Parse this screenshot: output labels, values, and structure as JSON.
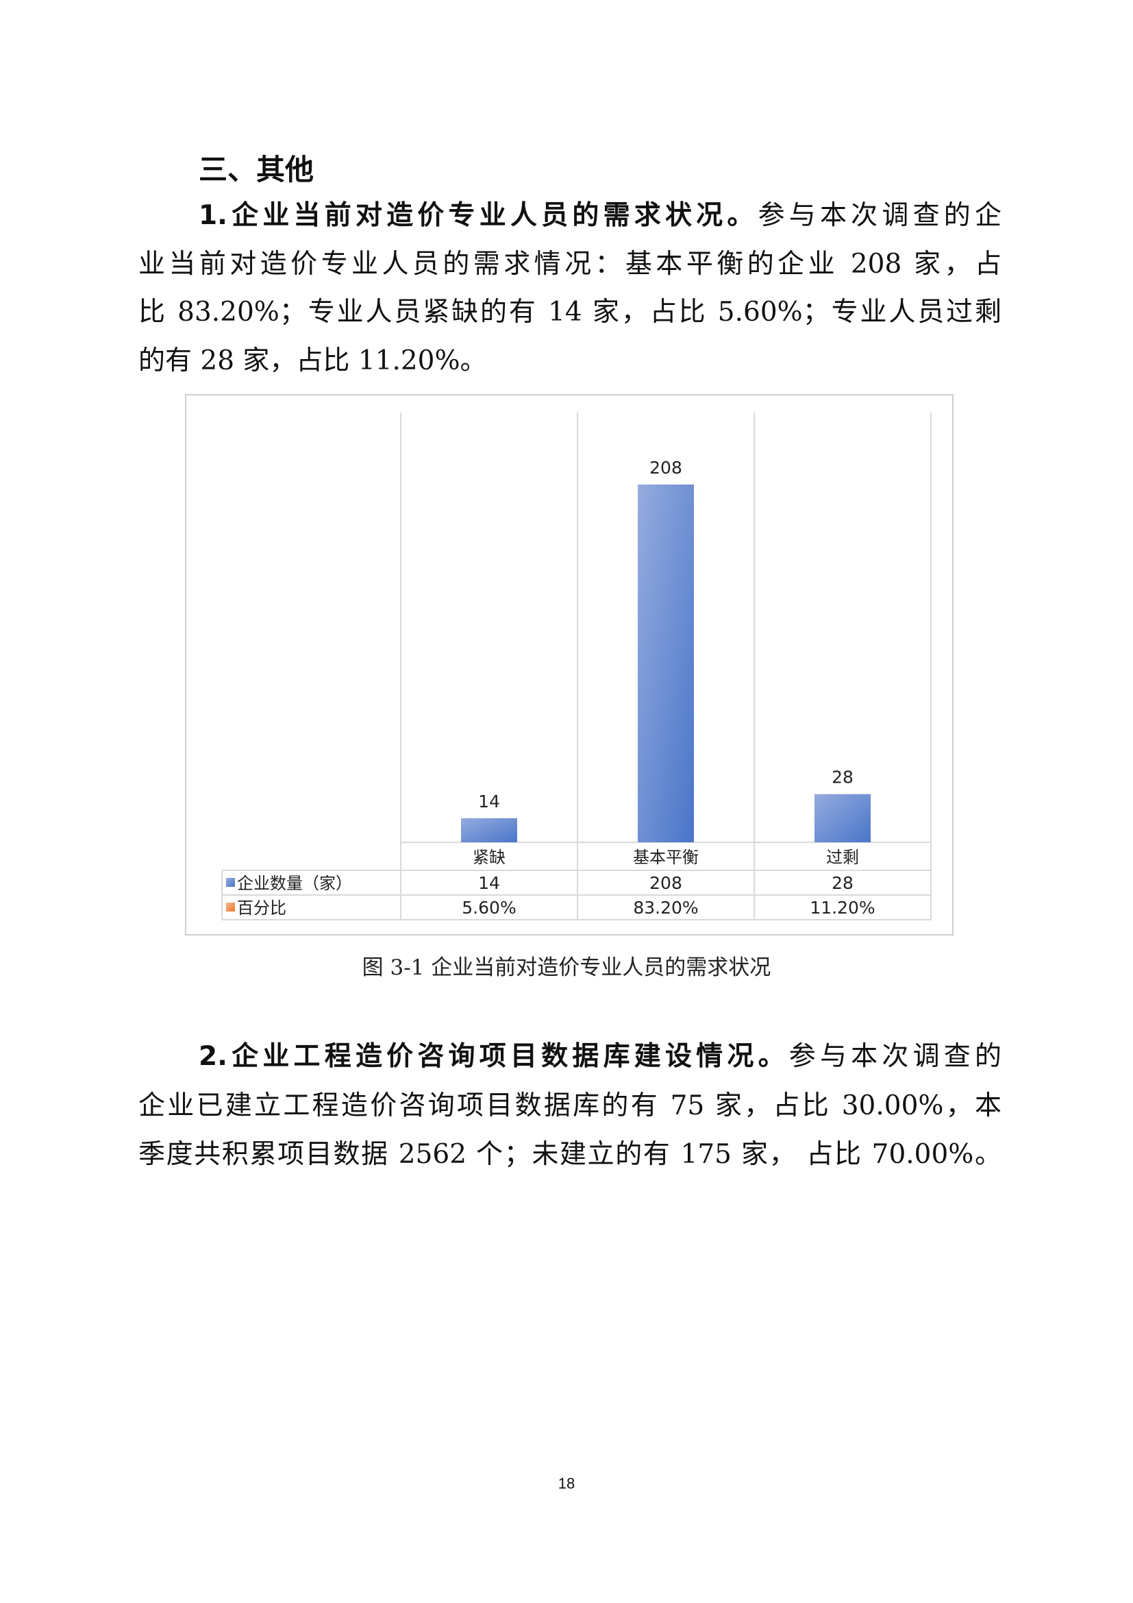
{
  "section_heading": "三、其他",
  "para1": {
    "lead": "1.企业当前对造价专业人员的需求状况。",
    "lines": [
      "参与本次调查的企",
      "业当前对造价专业人员的需求情况：基本平衡的企业 208 家，占",
      "比 83.20%；专业人员紧缺的有 14 家，占比 5.60%；专业人员过剩",
      "的有 28 家，占比 11.20%。"
    ]
  },
  "chart_data": {
    "type": "bar",
    "categories": [
      "紧缺",
      "基本平衡",
      "过剩"
    ],
    "series": [
      {
        "name": "企业数量（家）",
        "values": [
          14,
          208,
          28
        ],
        "color": "#4472C4",
        "display": [
          "14",
          "208",
          "28"
        ]
      },
      {
        "name": "百分比",
        "values": [
          5.6,
          83.2,
          11.2
        ],
        "color": "#ED7D31",
        "display": [
          "5.60%",
          "83.20%",
          "11.20%"
        ]
      }
    ],
    "data_labels": [
      "14",
      "208",
      "28"
    ],
    "data_table": true,
    "grid": "vertical category separators"
  },
  "caption": "图 3-1  企业当前对造价专业人员的需求状况",
  "para2": {
    "lead": "2.企业工程造价咨询项目数据库建设情况。",
    "lines": [
      "参与本次调查的",
      "企业已建立工程造价咨询项目数据库的有 75 家，占比 30.00%，本",
      "季度共积累项目数据 2562 个；未建立的有 175 家， 占比 70.00%。"
    ]
  },
  "page_number": "18"
}
